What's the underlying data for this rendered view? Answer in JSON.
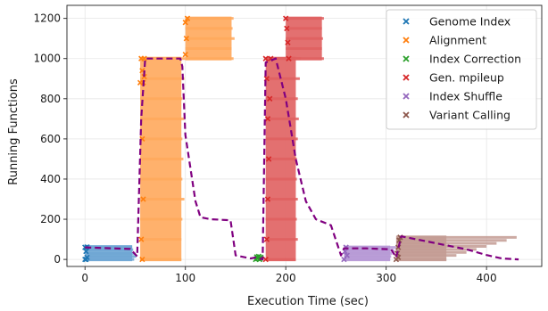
{
  "chart_data": {
    "type": "scatter",
    "title": "",
    "xlabel": "Execution Time (sec)",
    "ylabel": "Running Functions",
    "xlim": [
      -18,
      455
    ],
    "ylim": [
      -35,
      1265
    ],
    "xticks": [
      0,
      100,
      200,
      300,
      400
    ],
    "yticks": [
      0,
      200,
      400,
      600,
      800,
      1000,
      1200
    ],
    "grid": true,
    "legend_position": "top-right",
    "series": [
      {
        "name": "Genome Index",
        "color": "#1f77b4",
        "shading": "#6ea6d4",
        "points": [
          [
            0,
            0
          ],
          [
            0,
            60
          ],
          [
            1,
            0
          ],
          [
            1,
            40
          ],
          [
            2,
            62
          ],
          [
            2,
            10
          ]
        ],
        "bars": [
          [
            0,
            62,
            47
          ],
          [
            0,
            48,
            48
          ],
          [
            0,
            30,
            50
          ],
          [
            0,
            15,
            51
          ],
          [
            0,
            0,
            49
          ]
        ]
      },
      {
        "name": "Alignment",
        "color": "#ff7f0e",
        "shading": "#ffa95c",
        "points": [
          [
            55,
            880
          ],
          [
            56,
            1000
          ],
          [
            57,
            940
          ],
          [
            58,
            880
          ],
          [
            59,
            1000
          ],
          [
            59,
            910
          ],
          [
            57,
            600
          ],
          [
            58,
            300
          ],
          [
            56,
            100
          ],
          [
            57,
            0
          ],
          [
            100,
            1180
          ],
          [
            101,
            1100
          ],
          [
            102,
            1200
          ],
          [
            100,
            1020
          ]
        ],
        "bars": [
          [
            55,
            1000,
            100
          ],
          [
            55,
            900,
            99
          ],
          [
            55,
            800,
            97
          ],
          [
            55,
            700,
            99
          ],
          [
            55,
            600,
            97
          ],
          [
            55,
            500,
            98
          ],
          [
            55,
            400,
            97
          ],
          [
            55,
            300,
            99
          ],
          [
            55,
            200,
            97
          ],
          [
            55,
            100,
            96
          ],
          [
            55,
            0,
            96
          ],
          [
            100,
            1200,
            148
          ],
          [
            100,
            1150,
            147
          ],
          [
            100,
            1100,
            149
          ],
          [
            100,
            1050,
            146
          ],
          [
            100,
            1000,
            148
          ]
        ]
      },
      {
        "name": "Index Correction",
        "color": "#2ca02c",
        "shading": "#7fc77f",
        "points": [
          [
            170,
            0
          ],
          [
            171,
            12
          ],
          [
            172,
            5
          ],
          [
            173,
            15
          ],
          [
            174,
            0
          ],
          [
            175,
            10
          ]
        ],
        "bars": [
          [
            169,
            15,
            178
          ],
          [
            169,
            0,
            177
          ]
        ]
      },
      {
        "name": "Gen. mpileup",
        "color": "#d62728",
        "shading": "#e06060",
        "points": [
          [
            180,
            1000
          ],
          [
            181,
            900
          ],
          [
            182,
            700
          ],
          [
            183,
            500
          ],
          [
            182,
            300
          ],
          [
            181,
            100
          ],
          [
            180,
            0
          ],
          [
            184,
            800
          ],
          [
            185,
            1000
          ],
          [
            200,
            1200
          ],
          [
            201,
            1150
          ],
          [
            202,
            1080
          ],
          [
            203,
            1000
          ]
        ],
        "bars": [
          [
            180,
            1000,
            215
          ],
          [
            180,
            900,
            214
          ],
          [
            180,
            800,
            212
          ],
          [
            180,
            700,
            213
          ],
          [
            180,
            600,
            212
          ],
          [
            180,
            500,
            211
          ],
          [
            180,
            400,
            211
          ],
          [
            180,
            300,
            212
          ],
          [
            180,
            200,
            211
          ],
          [
            180,
            100,
            212
          ],
          [
            180,
            0,
            210
          ],
          [
            200,
            1200,
            238
          ],
          [
            200,
            1150,
            236
          ],
          [
            200,
            1100,
            237
          ],
          [
            200,
            1050,
            236
          ],
          [
            200,
            1000,
            238
          ]
        ]
      },
      {
        "name": "Index Shuffle",
        "color": "#9467bd",
        "shading": "#b79ad6",
        "points": [
          [
            258,
            0
          ],
          [
            259,
            40
          ],
          [
            260,
            60
          ],
          [
            261,
            20
          ]
        ],
        "bars": [
          [
            258,
            60,
            310
          ],
          [
            258,
            45,
            308
          ],
          [
            258,
            30,
            306
          ],
          [
            258,
            15,
            305
          ],
          [
            258,
            0,
            304
          ]
        ]
      },
      {
        "name": "Variant Calling",
        "color": "#8c564b",
        "shading": "#c49c94",
        "points": [
          [
            310,
            0
          ],
          [
            311,
            30
          ],
          [
            312,
            60
          ],
          [
            313,
            95
          ],
          [
            314,
            110
          ],
          [
            312,
            10
          ]
        ],
        "bars": [
          [
            310,
            110,
            430
          ],
          [
            310,
            95,
            420
          ],
          [
            310,
            80,
            410
          ],
          [
            310,
            65,
            400
          ],
          [
            310,
            50,
            390
          ],
          [
            310,
            35,
            380
          ],
          [
            310,
            20,
            370
          ],
          [
            310,
            0,
            360
          ]
        ]
      }
    ],
    "total_line": {
      "color": "#800080",
      "style": "dashed",
      "x": [
        0,
        45,
        52,
        56,
        60,
        95,
        97,
        100,
        110,
        115,
        125,
        145,
        150,
        165,
        170,
        177,
        180,
        190,
        200,
        210,
        220,
        230,
        245,
        255,
        258,
        280,
        305,
        310,
        315,
        340,
        360,
        380,
        400,
        415,
        432
      ],
      "y": [
        60,
        52,
        15,
        700,
        1000,
        1000,
        960,
        620,
        290,
        210,
        200,
        195,
        20,
        5,
        10,
        0,
        980,
        1000,
        800,
        500,
        290,
        200,
        170,
        20,
        55,
        55,
        50,
        10,
        115,
        90,
        70,
        50,
        22,
        5,
        0
      ]
    }
  }
}
